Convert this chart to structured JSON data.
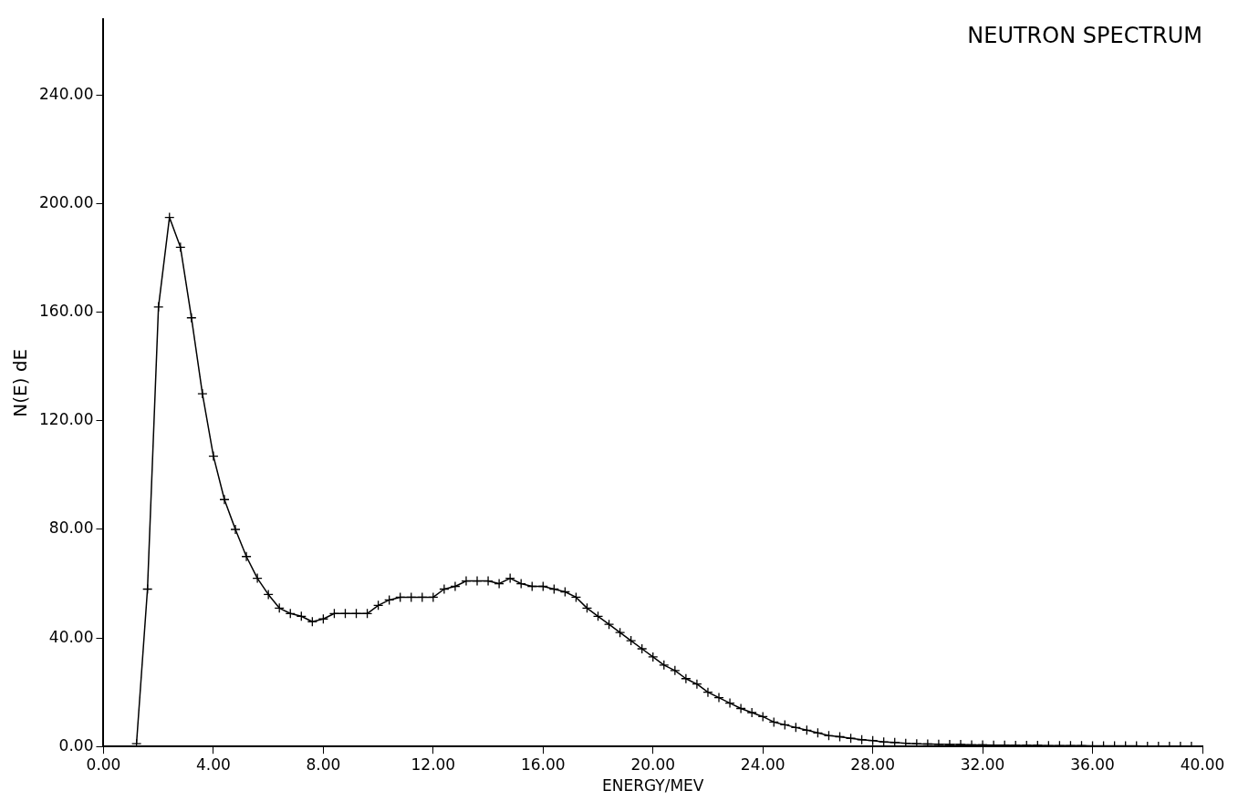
{
  "chart_data": {
    "type": "line",
    "title": "NEUTRON SPECTRUM",
    "xlabel": "ENERGY/MEV",
    "ylabel": "N(E) dE",
    "xlim": [
      0,
      40
    ],
    "ylim": [
      0,
      268
    ],
    "xticks": [
      {
        "value": 0,
        "label": "0.00"
      },
      {
        "value": 4,
        "label": "4.00"
      },
      {
        "value": 8,
        "label": "8.00"
      },
      {
        "value": 12,
        "label": "12.00"
      },
      {
        "value": 16,
        "label": "16.00"
      },
      {
        "value": 20,
        "label": "20.00"
      },
      {
        "value": 24,
        "label": "24.00"
      },
      {
        "value": 28,
        "label": "28.00"
      },
      {
        "value": 32,
        "label": "32.00"
      },
      {
        "value": 36,
        "label": "36.00"
      },
      {
        "value": 40,
        "label": "40.00"
      }
    ],
    "yticks": [
      {
        "value": 0,
        "label": "0.00"
      },
      {
        "value": 40,
        "label": "40.00"
      },
      {
        "value": 80,
        "label": "80.00"
      },
      {
        "value": 120,
        "label": "120.00"
      },
      {
        "value": 160,
        "label": "160.00"
      },
      {
        "value": 200,
        "label": "200.00"
      },
      {
        "value": 240,
        "label": "240.00"
      }
    ],
    "grid": false,
    "legend": false,
    "marker": "cross",
    "line_style": "solid",
    "series": [
      {
        "color": "#000000",
        "x": [
          1.2,
          1.6,
          2.0,
          2.4,
          2.8,
          3.2,
          3.6,
          4.0,
          4.4,
          4.8,
          5.2,
          5.6,
          6.0,
          6.4,
          6.8,
          7.2,
          7.6,
          8.0,
          8.4,
          8.8,
          9.2,
          9.6,
          10.0,
          10.4,
          10.8,
          11.2,
          11.6,
          12.0,
          12.4,
          12.8,
          13.2,
          13.6,
          14.0,
          14.4,
          14.8,
          15.2,
          15.6,
          16.0,
          16.4,
          16.8,
          17.2,
          17.6,
          18.0,
          18.4,
          18.8,
          19.2,
          19.6,
          20.0,
          20.4,
          20.8,
          21.2,
          21.6,
          22.0,
          22.4,
          22.8,
          23.2,
          23.6,
          24.0,
          24.4,
          24.8,
          25.2,
          25.6,
          26.0,
          26.4,
          26.8,
          27.2,
          27.6,
          28.0,
          28.4,
          28.8,
          29.2,
          29.6,
          30.0,
          30.4,
          30.8,
          31.2,
          31.6,
          32.0,
          32.4,
          32.8,
          33.2,
          33.6,
          34.0,
          34.4,
          34.8,
          35.2,
          35.6,
          36.0,
          36.4,
          36.8,
          37.2,
          37.6,
          38.0,
          38.4,
          38.8,
          39.2,
          39.6
        ],
        "values": [
          1,
          58,
          162,
          195,
          184,
          158,
          130,
          107,
          91,
          80,
          70,
          62,
          56,
          51,
          49,
          48,
          46,
          47,
          49,
          49,
          49,
          49,
          52,
          54,
          55,
          55,
          55,
          55,
          58,
          59,
          61,
          61,
          61,
          60,
          62,
          60,
          59,
          59,
          58,
          57,
          55,
          51,
          48,
          45,
          42,
          39,
          36,
          33,
          30,
          28,
          25,
          23,
          20,
          18,
          16,
          14,
          12.5,
          11,
          9,
          8,
          7,
          6,
          5,
          4,
          3.6,
          3,
          2.5,
          2.2,
          1.7,
          1.5,
          1.2,
          1,
          0.9,
          0.8,
          0.7,
          0.7,
          0.6,
          0.6,
          0.5,
          0.5,
          0.4,
          0.4,
          0.4,
          0.3,
          0.3,
          0.3,
          0.3,
          0.2,
          0.2,
          0.2,
          0.2,
          0.2,
          0.1,
          0.1,
          0.1,
          0.1,
          0.1
        ]
      }
    ]
  }
}
